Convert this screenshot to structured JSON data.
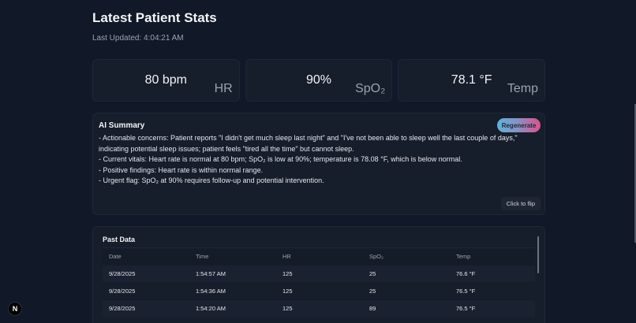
{
  "header": {
    "title": "Latest Patient Stats",
    "last_updated": "Last Updated: 4:04:21 AM"
  },
  "stats": [
    {
      "value": "80 bpm",
      "label": "HR"
    },
    {
      "value": "90%",
      "label": "SpO₂"
    },
    {
      "value": "78.1 °F",
      "label": "Temp"
    }
  ],
  "summary": {
    "title": "AI Summary",
    "regenerate_label": "Regenerate",
    "flip_label": "Click to flip",
    "lines": [
      "- Actionable concerns: Patient reports \"I didn't get much sleep last night\" and \"I've not been able to sleep well the last couple of days,\" indicating potential sleep issues; patient feels \"tired all the time\" but cannot sleep.",
      "- Current vitals: Heart rate is normal at 80 bpm; SpO₂ is low at 90%; temperature is 78.08 °F, which is below normal.",
      "- Positive findings: Heart rate is within normal range.",
      "- Urgent flag: SpO₂ at 90% requires follow-up and potential intervention."
    ]
  },
  "past_data": {
    "title": "Past Data",
    "columns": [
      "Date",
      "Time",
      "HR",
      "SpO₂",
      "Temp"
    ],
    "rows": [
      [
        "9/28/2025",
        "1:54:57 AM",
        "125",
        "25",
        "76.6 °F"
      ],
      [
        "9/28/2025",
        "1:54:36 AM",
        "125",
        "25",
        "76.5 °F"
      ],
      [
        "9/28/2025",
        "1:54:20 AM",
        "125",
        "89",
        "76.5 °F"
      ]
    ]
  },
  "badge": {
    "label": "N"
  },
  "colors": {
    "background": "#111827",
    "card": "#161d2b",
    "gradient_start": "#5fb2d9",
    "gradient_end": "#e0508a"
  }
}
